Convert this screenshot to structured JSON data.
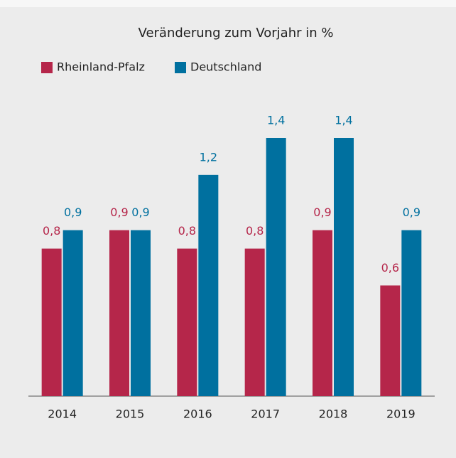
{
  "chart_data": {
    "type": "bar",
    "title": "Veränderung zum Vorjahr in %",
    "categories": [
      "2014",
      "2015",
      "2016",
      "2017",
      "2018",
      "2019"
    ],
    "series": [
      {
        "name": "Rheinland-Pfalz",
        "color": "#b5264a",
        "values": [
          0.8,
          0.9,
          0.8,
          0.8,
          0.9,
          0.6
        ],
        "value_labels": [
          "0,8",
          "0,9",
          "0,8",
          "0,8",
          "0,9",
          "0,6"
        ]
      },
      {
        "name": "Deutschland",
        "color": "#00709f",
        "values": [
          0.9,
          0.9,
          1.2,
          1.4,
          1.4,
          0.9
        ],
        "value_labels": [
          "0,9",
          "0,9",
          "1,2",
          "1,4",
          "1,4",
          "0,9"
        ]
      }
    ],
    "ylim": [
      0,
      1.4
    ]
  }
}
